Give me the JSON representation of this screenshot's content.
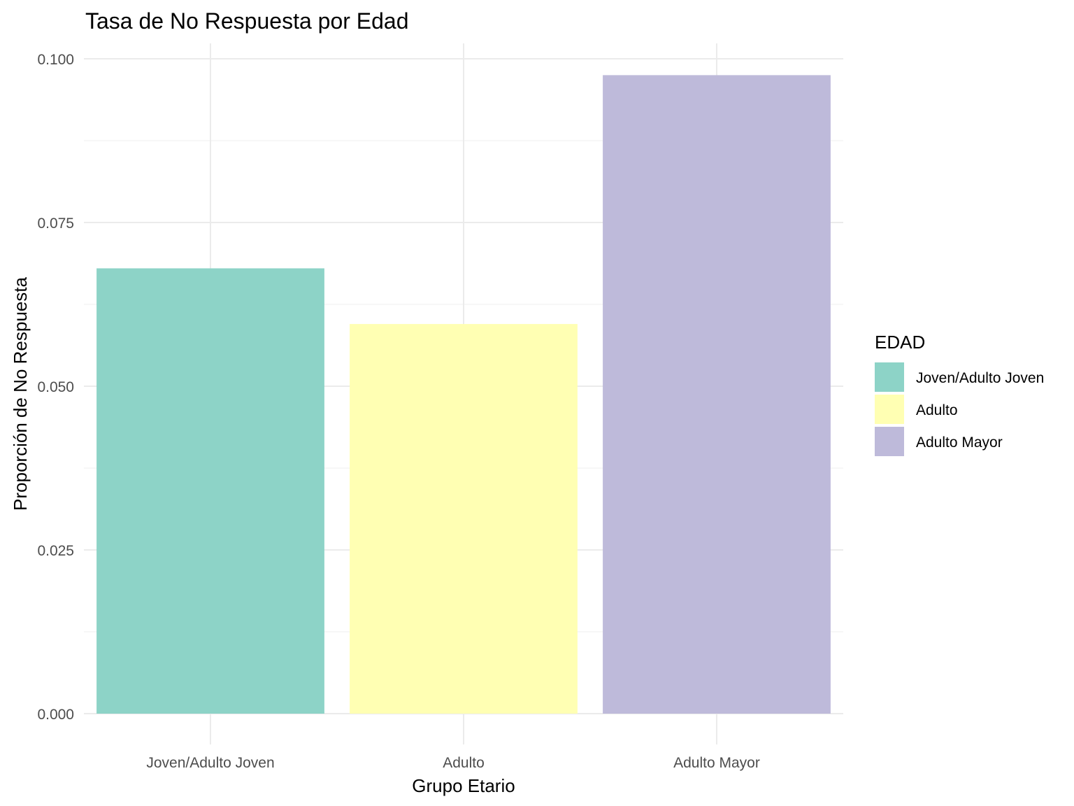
{
  "chart_data": {
    "type": "bar",
    "title": "Tasa de No Respuesta por Edad",
    "xlabel": "Grupo Etario",
    "ylabel": "Proporción de No Respuesta",
    "categories": [
      "Joven/Adulto Joven",
      "Adulto",
      "Adulto Mayor"
    ],
    "values": [
      0.068,
      0.0595,
      0.0975
    ],
    "colors": [
      "#8dd3c7",
      "#ffffb3",
      "#bebada"
    ],
    "ylim": [
      0,
      0.1
    ],
    "yticks": [
      0.0,
      0.025,
      0.05,
      0.075,
      0.1
    ],
    "ytick_labels": [
      "0.000",
      "0.025",
      "0.050",
      "0.075",
      "0.100"
    ],
    "grid": true,
    "legend": {
      "title": "EDAD",
      "position": "right",
      "entries": [
        "Joven/Adulto Joven",
        "Adulto",
        "Adulto Mayor"
      ]
    }
  }
}
